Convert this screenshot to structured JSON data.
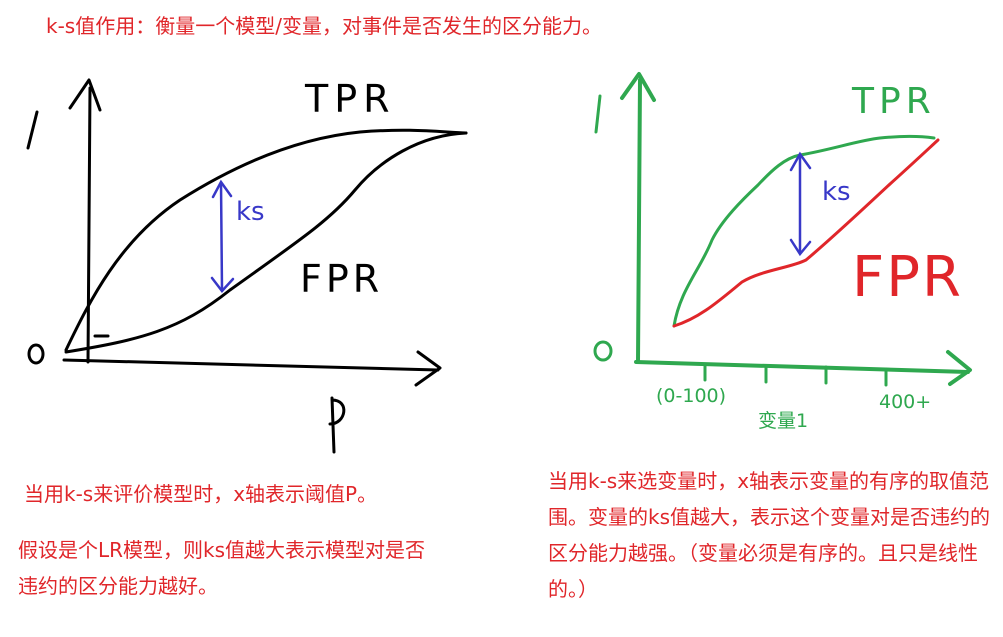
{
  "title": "k-s值作用：衡量一个模型/变量，对事件是否发生的区分能力。",
  "left_diagram": {
    "y_max_label": "1",
    "origin_label": "0",
    "x_axis_label": "P",
    "tpr_label": "TPR",
    "fpr_label": "FPR",
    "ks_label": "ks",
    "description": "当用k-s来评价模型时，x轴表示阈值P。",
    "note": "假设是个LR模型，则ks值越大表示模型对是否违约的区分能力越好。"
  },
  "right_diagram": {
    "y_max_label": "1",
    "origin_label": "0",
    "tpr_label": "TPR",
    "fpr_label": "FPR",
    "ks_label": "ks",
    "x_start_label": "(0-100)",
    "x_axis_label": "变量1",
    "x_end_label": "400+",
    "description": "当用k-s来选变量时，x轴表示变量的有序的取值范围。变量的ks值越大，表示这个变量对是否违约的区分能力越强。（变量必须是有序的。且只是线性的。）"
  },
  "colors": {
    "ink": "#000000",
    "red": "#e0262a",
    "green": "#2fa84f",
    "blue": "#3838c8"
  }
}
